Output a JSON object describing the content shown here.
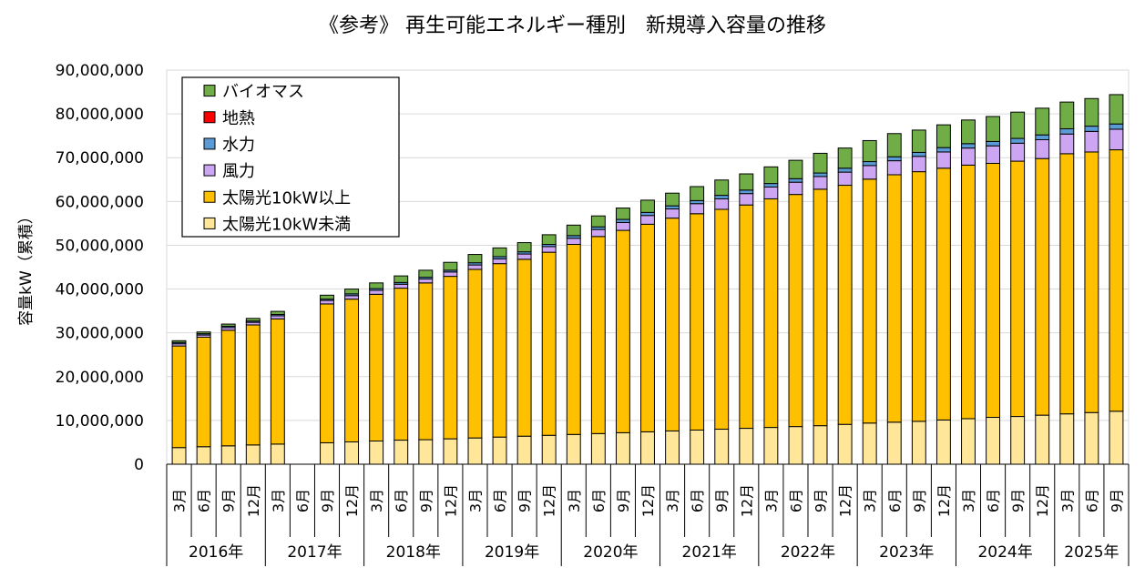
{
  "chart_data": {
    "type": "bar",
    "stacked": true,
    "title": "《参考》 再生可能エネルギー種別　新規導入容量の推移",
    "ylabel": "容量kW（累積）",
    "ylim": [
      0,
      90000000
    ],
    "yticks": [
      0,
      10000000,
      20000000,
      30000000,
      40000000,
      50000000,
      60000000,
      70000000,
      80000000,
      90000000
    ],
    "ytick_labels": [
      "0",
      "10,000,000",
      "20,000,000",
      "30,000,000",
      "40,000,000",
      "50,000,000",
      "60,000,000",
      "70,000,000",
      "80,000,000",
      "90,000,000"
    ],
    "grid": true,
    "legend_position": "top-left",
    "categories": [
      "2016-3",
      "2016-6",
      "2016-9",
      "2016-12",
      "2017-3",
      "2017-6",
      "2017-9",
      "2017-12",
      "2018-3",
      "2018-6",
      "2018-9",
      "2018-12",
      "2019-3",
      "2019-6",
      "2019-9",
      "2019-12",
      "2020-3",
      "2020-6",
      "2020-9",
      "2020-12",
      "2021-3",
      "2021-6",
      "2021-9",
      "2021-12",
      "2022-3",
      "2022-6",
      "2022-9",
      "2022-12",
      "2023-3",
      "2023-6",
      "2023-9",
      "2023-12",
      "2024-3",
      "2024-6",
      "2024-9",
      "2024-12",
      "2025-3",
      "2025-6",
      "2025-9"
    ],
    "month_labels": [
      "3月",
      "6月",
      "9月",
      "12月",
      "3月",
      "6月",
      "9月",
      "12月",
      "3月",
      "6月",
      "9月",
      "12月",
      "3月",
      "6月",
      "9月",
      "12月",
      "3月",
      "6月",
      "9月",
      "12月",
      "3月",
      "6月",
      "9月",
      "12月",
      "3月",
      "6月",
      "9月",
      "12月",
      "3月",
      "6月",
      "9月",
      "12月",
      "3月",
      "6月",
      "9月",
      "12月",
      "3月",
      "6月",
      "9月"
    ],
    "year_groups": [
      {
        "label": "2016年",
        "count": 4
      },
      {
        "label": "2017年",
        "count": 4
      },
      {
        "label": "2018年",
        "count": 4
      },
      {
        "label": "2019年",
        "count": 4
      },
      {
        "label": "2020年",
        "count": 4
      },
      {
        "label": "2021年",
        "count": 4
      },
      {
        "label": "2022年",
        "count": 4
      },
      {
        "label": "2023年",
        "count": 4
      },
      {
        "label": "2024年",
        "count": 4
      },
      {
        "label": "2025年",
        "count": 3
      }
    ],
    "series": [
      {
        "name": "太陽光10kW未満",
        "color": "#FFE699",
        "values": [
          3800000,
          4000000,
          4200000,
          4400000,
          4600000,
          null,
          4900000,
          5100000,
          5300000,
          5500000,
          5600000,
          5800000,
          6000000,
          6200000,
          6400000,
          6600000,
          6800000,
          7000000,
          7200000,
          7400000,
          7600000,
          7800000,
          8000000,
          8200000,
          8400000,
          8600000,
          8800000,
          9100000,
          9400000,
          9600000,
          9800000,
          10100000,
          10400000,
          10700000,
          10900000,
          11200000,
          11500000,
          11800000,
          12100000
        ]
      },
      {
        "name": "太陽光10kW以上",
        "color": "#FFC000",
        "values": [
          23200000,
          25000000,
          26400000,
          27400000,
          28600000,
          null,
          31700000,
          32600000,
          33500000,
          34700000,
          35800000,
          37100000,
          38500000,
          39600000,
          40400000,
          41800000,
          43400000,
          45000000,
          46200000,
          47400000,
          48600000,
          49400000,
          50200000,
          51000000,
          52200000,
          53000000,
          54000000,
          54600000,
          55700000,
          56500000,
          57000000,
          57500000,
          57900000,
          58000000,
          58300000,
          58600000,
          59400000,
          59500000,
          59700000
        ]
      },
      {
        "name": "風力",
        "color": "#CCA6F2",
        "values": [
          500000,
          500000,
          600000,
          600000,
          700000,
          null,
          800000,
          800000,
          900000,
          900000,
          900000,
          1000000,
          1000000,
          1100000,
          1200000,
          1300000,
          1400000,
          1600000,
          1800000,
          2000000,
          2100000,
          2300000,
          2400000,
          2600000,
          2700000,
          2800000,
          2900000,
          3000000,
          3100000,
          3200000,
          3500000,
          3700000,
          3900000,
          4000000,
          4100000,
          4300000,
          4500000,
          4700000,
          4700000
        ]
      },
      {
        "name": "水力",
        "color": "#5B9BD5",
        "values": [
          300000,
          300000,
          300000,
          300000,
          300000,
          null,
          300000,
          400000,
          400000,
          400000,
          400000,
          400000,
          500000,
          500000,
          500000,
          500000,
          600000,
          600000,
          700000,
          700000,
          700000,
          700000,
          800000,
          800000,
          800000,
          800000,
          800000,
          900000,
          900000,
          900000,
          900000,
          1000000,
          1000000,
          1000000,
          1100000,
          1100000,
          1200000,
          1200000,
          1200000
        ]
      },
      {
        "name": "地熱",
        "color": "#FF0000",
        "values": [
          null,
          null,
          null,
          null,
          null,
          null,
          null,
          null,
          null,
          null,
          null,
          null,
          null,
          null,
          null,
          null,
          null,
          null,
          null,
          null,
          null,
          null,
          null,
          null,
          null,
          null,
          null,
          null,
          null,
          null,
          null,
          null,
          null,
          null,
          null,
          null,
          null,
          null,
          null
        ]
      },
      {
        "name": "バイオマス",
        "color": "#70AD47",
        "values": [
          400000,
          400000,
          500000,
          600000,
          700000,
          null,
          900000,
          1100000,
          1300000,
          1500000,
          1600000,
          1800000,
          1900000,
          2000000,
          2100000,
          2200000,
          2400000,
          2500000,
          2600000,
          2800000,
          2900000,
          3200000,
          3500000,
          3700000,
          3800000,
          4200000,
          4500000,
          4600000,
          4800000,
          5300000,
          5100000,
          5200000,
          5400000,
          5700000,
          6000000,
          6100000,
          6100000,
          6300000,
          6700000
        ]
      }
    ]
  }
}
